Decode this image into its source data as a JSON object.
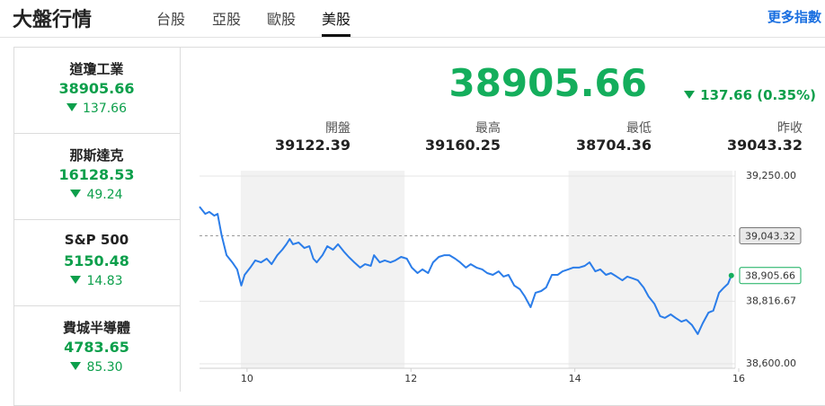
{
  "header": {
    "title": "大盤行情",
    "tabs": [
      "台股",
      "亞股",
      "歐股",
      "美股"
    ],
    "active_tab": 3,
    "more": "更多指數"
  },
  "sidebar": [
    {
      "name": "道瓊工業",
      "value": "38905.66",
      "change": "137.66"
    },
    {
      "name": "那斯達克",
      "value": "16128.53",
      "change": "49.24"
    },
    {
      "name": "S&P 500",
      "value": "5150.48",
      "change": "14.83"
    },
    {
      "name": "費城半導體",
      "value": "4783.65",
      "change": "85.30"
    }
  ],
  "quote": {
    "value": "38905.66",
    "change": "137.66 (0.35%)",
    "stats": [
      {
        "label": "開盤",
        "value": "39122.39"
      },
      {
        "label": "最高",
        "value": "39160.25"
      },
      {
        "label": "最低",
        "value": "38704.36"
      },
      {
        "label": "昨收",
        "value": "39043.32"
      }
    ]
  },
  "chart_data": {
    "type": "line",
    "color": "#2b7de9",
    "x": [
      9.42,
      9.49,
      9.54,
      9.6,
      9.64,
      9.69,
      9.75,
      9.82,
      9.88,
      9.93,
      9.97,
      10.04,
      10.1,
      10.17,
      10.24,
      10.3,
      10.37,
      10.43,
      10.48,
      10.52,
      10.56,
      10.63,
      10.7,
      10.76,
      10.81,
      10.85,
      10.92,
      10.98,
      11.05,
      11.11,
      11.18,
      11.24,
      11.31,
      11.38,
      11.44,
      11.51,
      11.55,
      11.62,
      11.68,
      11.75,
      11.81,
      11.88,
      11.95,
      12.01,
      12.08,
      12.14,
      12.21,
      12.27,
      12.34,
      12.41,
      12.47,
      12.54,
      12.6,
      12.67,
      12.73,
      12.8,
      12.87,
      12.93,
      13.0,
      13.07,
      13.13,
      13.19,
      13.26,
      13.33,
      13.39,
      13.46,
      13.52,
      13.59,
      13.65,
      13.72,
      13.79,
      13.85,
      13.92,
      13.98,
      14.05,
      14.12,
      14.18,
      14.25,
      14.31,
      14.38,
      14.44,
      14.51,
      14.58,
      14.64,
      14.71,
      14.77,
      14.84,
      14.9,
      14.97,
      15.04,
      15.1,
      15.17,
      15.23,
      15.3,
      15.36,
      15.43,
      15.5,
      15.56,
      15.63,
      15.69,
      15.76,
      15.82,
      15.87,
      15.91
    ],
    "values": [
      39144,
      39119,
      39126,
      39113,
      39119,
      39045,
      38976,
      38951,
      38927,
      38871,
      38908,
      38933,
      38958,
      38951,
      38964,
      38945,
      38976,
      38995,
      39014,
      39032,
      39014,
      39020,
      39001,
      39007,
      38964,
      38951,
      38976,
      39007,
      38995,
      39014,
      38989,
      38970,
      38951,
      38933,
      38945,
      38939,
      38976,
      38951,
      38958,
      38951,
      38958,
      38970,
      38964,
      38933,
      38914,
      38927,
      38914,
      38951,
      38970,
      38976,
      38976,
      38964,
      38951,
      38933,
      38945,
      38933,
      38927,
      38914,
      38908,
      38920,
      38902,
      38908,
      38871,
      38858,
      38833,
      38796,
      38846,
      38852,
      38864,
      38908,
      38908,
      38920,
      38927,
      38933,
      38933,
      38939,
      38951,
      38920,
      38927,
      38908,
      38914,
      38902,
      38889,
      38902,
      38895,
      38889,
      38864,
      38833,
      38808,
      38765,
      38759,
      38771,
      38759,
      38746,
      38752,
      38734,
      38703,
      38740,
      38777,
      38784,
      38846,
      38864,
      38877,
      38905.66
    ],
    "xlim": [
      9.42,
      16
    ],
    "xticks": [
      10,
      12,
      14,
      16
    ],
    "ylim": [
      38600,
      39250
    ],
    "yticks": [
      {
        "value": 38600,
        "label": "38,600.00"
      },
      {
        "value": 38816.67,
        "label": "38,816.67"
      },
      {
        "value": 39250,
        "label": "39,250.00"
      }
    ],
    "reference": {
      "value": 39043.32,
      "label": "39,043.32"
    },
    "last": {
      "value": 38905.66,
      "label": "38,905.66"
    },
    "grid": true
  }
}
